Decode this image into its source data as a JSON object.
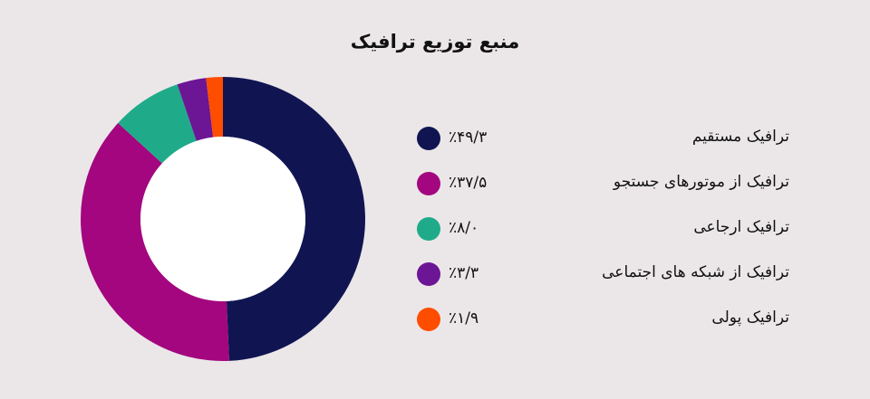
{
  "chart_data": {
    "type": "pie",
    "title": "منبع توزیع ترافیک",
    "categories": [
      "ترافیک مستقیم",
      "ترافیک از موتورهای جستجو",
      "ترافیک ارجاعی",
      "ترافیک از شبکه های اجتماعی",
      "ترافیک پولی"
    ],
    "values": [
      49.3,
      37.5,
      8.0,
      3.3,
      1.9
    ],
    "value_labels": [
      "٪۴۹/۳",
      "٪۳۷/۵",
      "٪۸/۰",
      "٪۳/۳",
      "٪۱/۹"
    ],
    "colors": [
      "#101552",
      "#a3067f",
      "#1fab89",
      "#6c1595",
      "#ff4d00"
    ],
    "legend_position": "right"
  }
}
